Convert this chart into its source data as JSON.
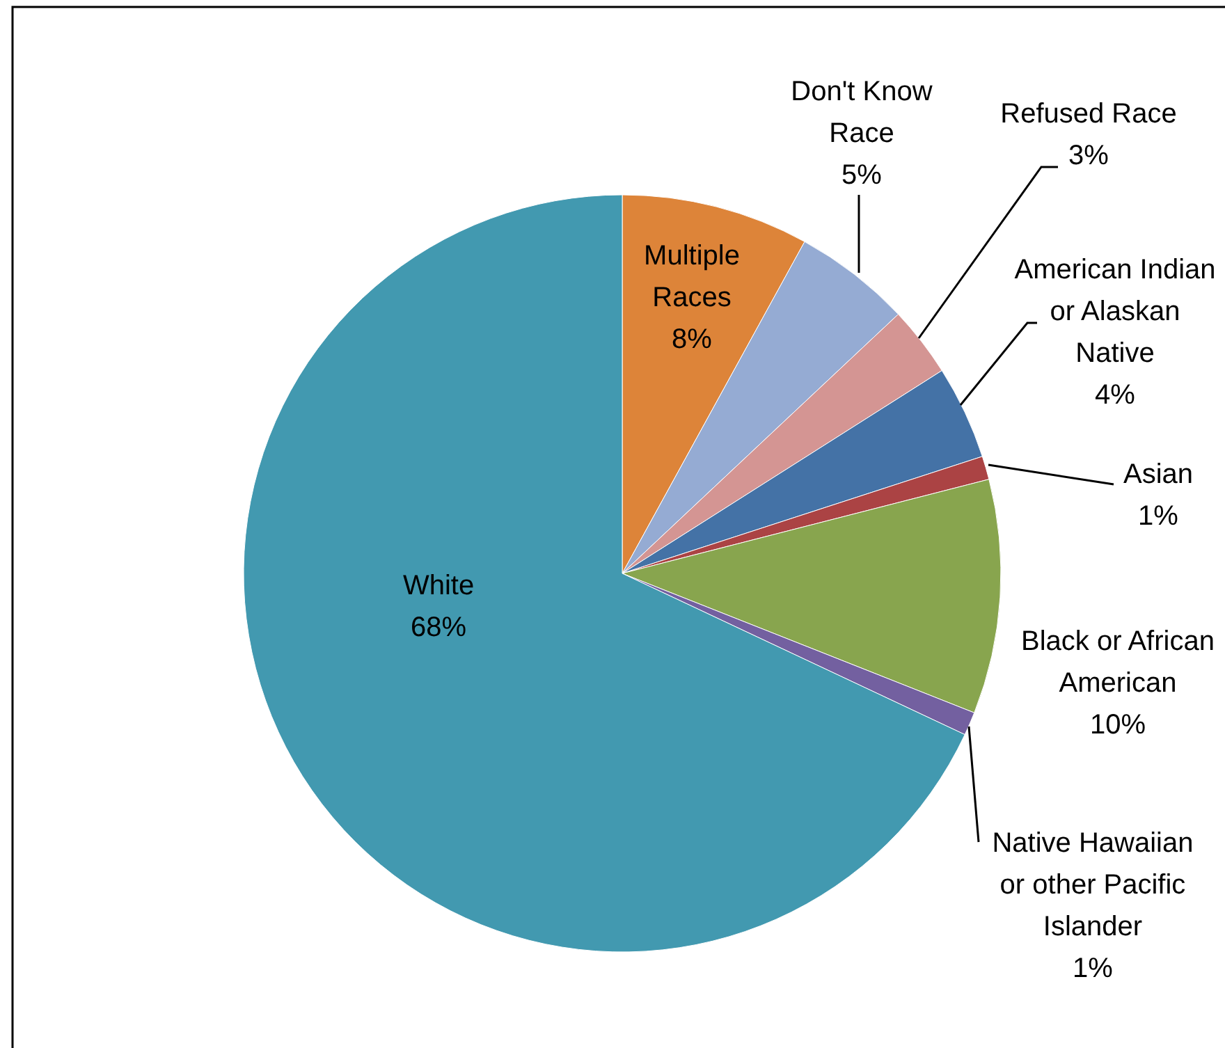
{
  "chart_data": {
    "type": "pie",
    "categories": [
      "Multiple Races",
      "Don't Know Race",
      "Refused Race",
      "American Indian or Alaskan Native",
      "Asian",
      "Black or African American",
      "Native Hawaiian or other Pacific Islander",
      "White"
    ],
    "values": [
      8,
      5,
      3,
      4,
      1,
      10,
      1,
      68
    ],
    "value_labels": [
      "8%",
      "5%",
      "3%",
      "4%",
      "1%",
      "10%",
      "1%",
      "68%"
    ],
    "colors": [
      "#dd8439",
      "#95abd3",
      "#d49593",
      "#4472a6",
      "#ab4344",
      "#88a54e",
      "#7360a0",
      "#4299b0"
    ]
  }
}
